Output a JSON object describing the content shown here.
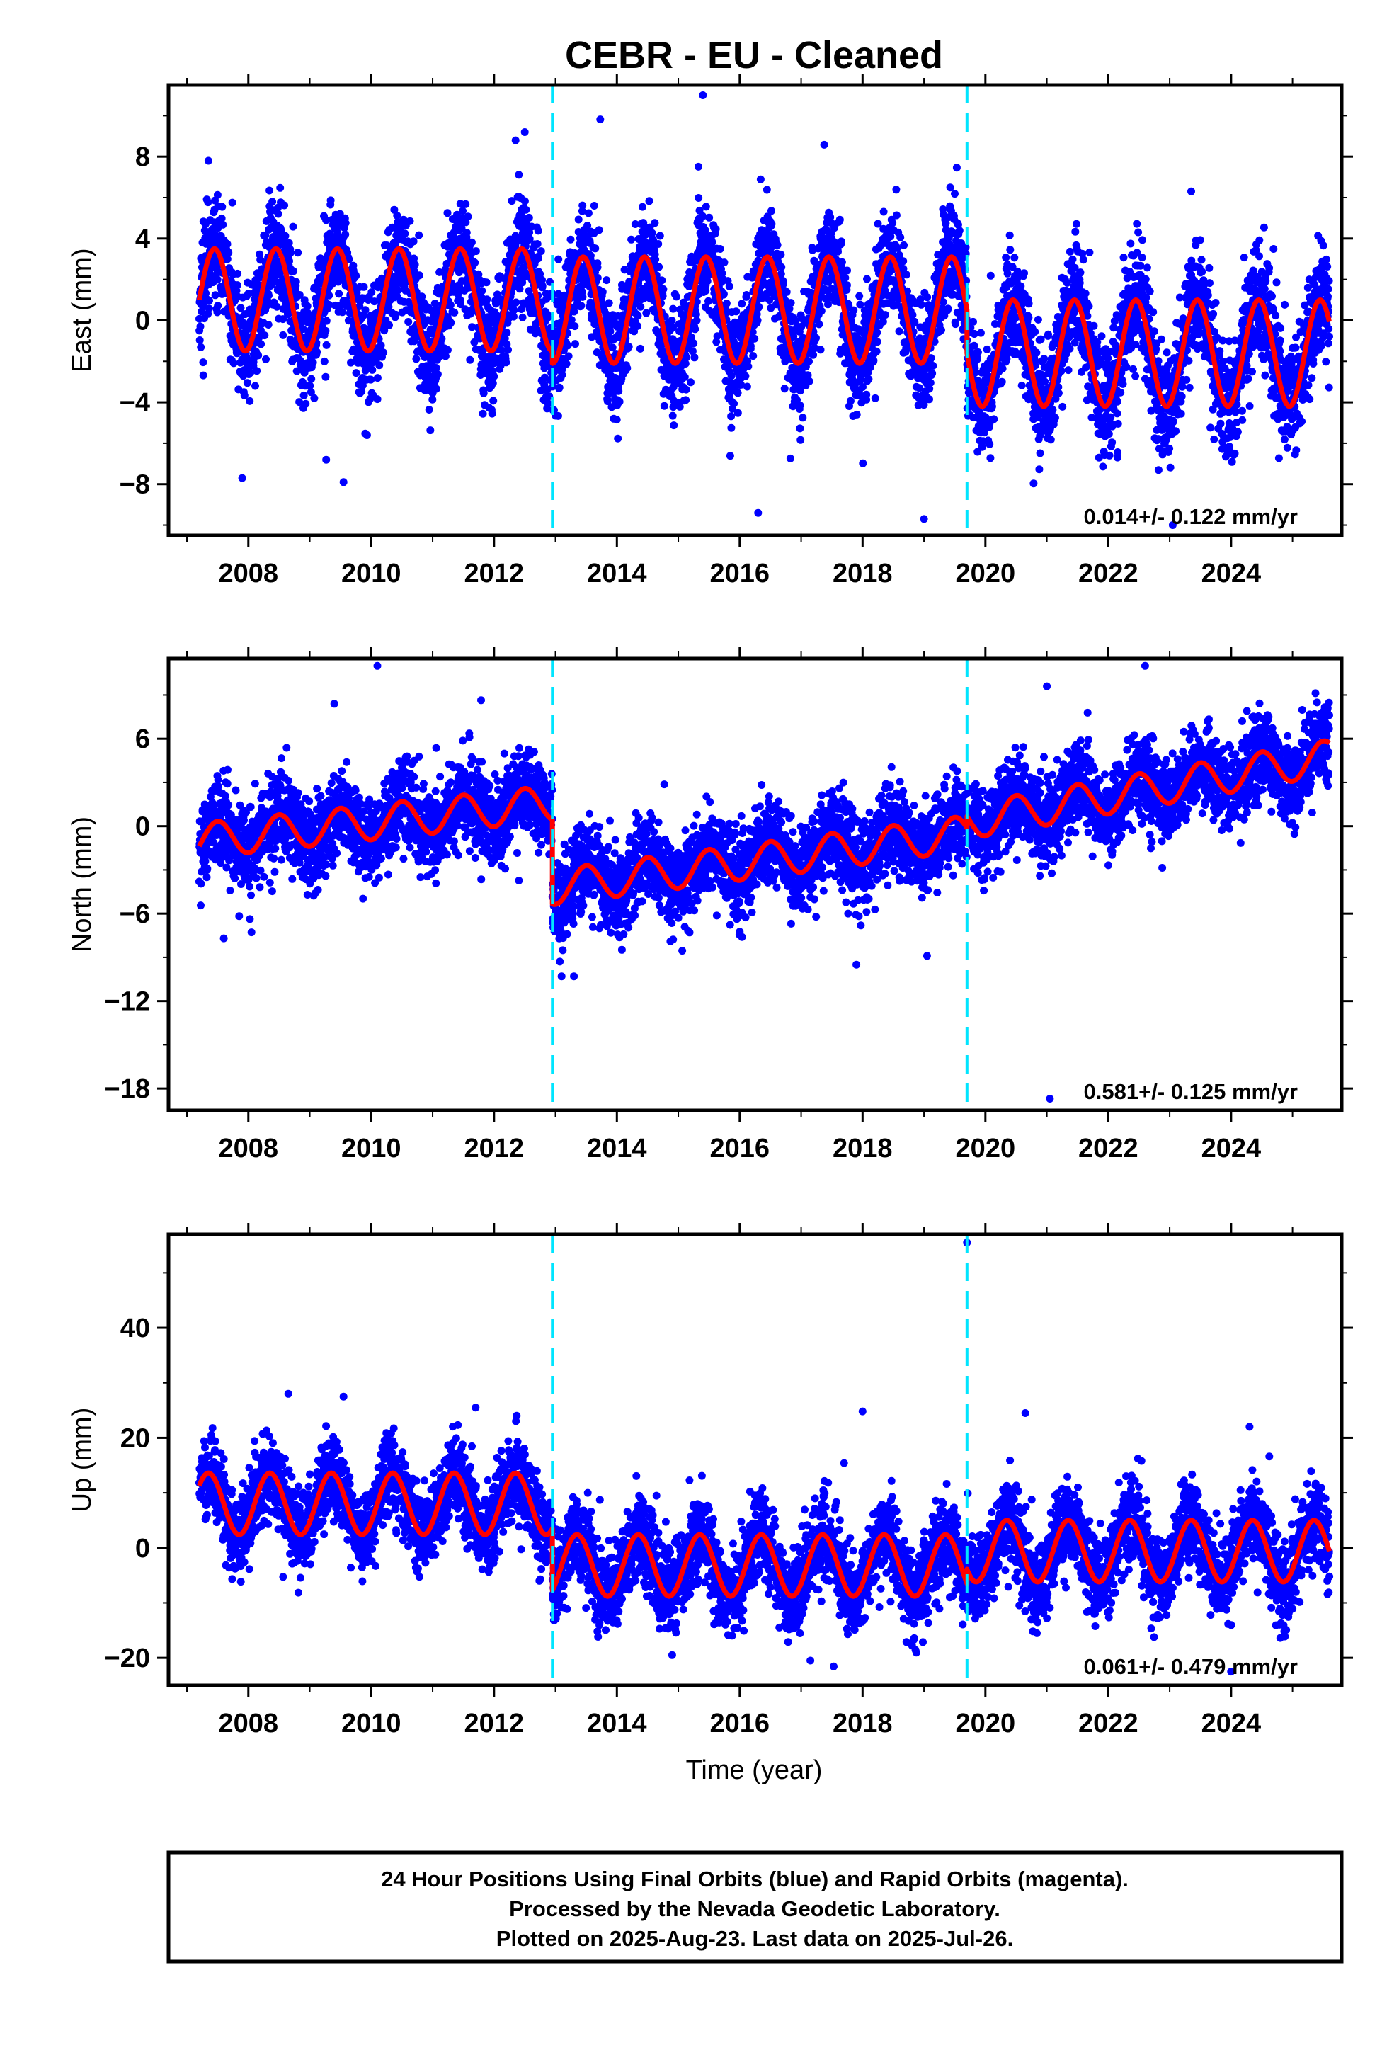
{
  "page": {
    "title": "CEBR  - EU - Cleaned",
    "xlabel": "Time (year)",
    "footer_lines": [
      "24 Hour Positions Using Final Orbits (blue) and Rapid Orbits (magenta).",
      "Processed by the Nevada Geodetic Laboratory.",
      "Plotted on 2025-Aug-23. Last data on 2025-Jul-26."
    ]
  },
  "colors": {
    "points": "#0000ff",
    "model": "#ff0000",
    "breaks": "#00e5ff",
    "frame": "#000000"
  },
  "chart_data": [
    {
      "type": "scatter",
      "ylabel": "East (mm)",
      "xlim": [
        2006.7,
        2025.8
      ],
      "ylim": [
        -10.5,
        11.5
      ],
      "yticks": [
        -8,
        -4,
        0,
        4,
        8
      ],
      "xticks": [
        2008,
        2010,
        2012,
        2014,
        2016,
        2018,
        2020,
        2022,
        2024
      ],
      "tick_labels": {
        "y": [
          "−8",
          "−4",
          "0",
          "4",
          "8"
        ],
        "x": [
          "2008",
          "2010",
          "2012",
          "2014",
          "2016",
          "2018",
          "2020",
          "2022",
          "2024"
        ]
      },
      "rate_text": "0.014+/- 0.122 mm/yr",
      "breaks": [
        2012.95,
        2019.7
      ],
      "series": [
        {
          "role": "model",
          "segments": [
            {
              "x0": 2007.2,
              "x1": 2012.95,
              "offset": 1.0,
              "amplitude": 2.5,
              "phase": 2007.45
            },
            {
              "x0": 2012.95,
              "x1": 2019.7,
              "offset": 0.5,
              "amplitude": 2.6,
              "phase": 2007.45
            },
            {
              "x0": 2019.7,
              "x1": 2025.6,
              "offset": -1.6,
              "amplitude": 2.6,
              "phase": 2007.45
            }
          ]
        }
      ],
      "scatter": {
        "count": 6500,
        "noise": 1.3,
        "seed": 11,
        "outliers": [
          [
            2015.4,
            11.0
          ],
          [
            2012.5,
            9.2
          ],
          [
            2012.35,
            8.8
          ],
          [
            2007.35,
            7.8
          ],
          [
            2007.9,
            -7.7
          ],
          [
            2009.55,
            -7.9
          ],
          [
            2019.0,
            -9.7
          ],
          [
            2023.05,
            -10.0
          ],
          [
            2016.3,
            -9.4
          ],
          [
            2023.35,
            6.3
          ]
        ]
      }
    },
    {
      "type": "scatter",
      "ylabel": "North (mm)",
      "xlim": [
        2006.7,
        2025.8
      ],
      "ylim": [
        -19.5,
        11.5
      ],
      "yticks": [
        -18,
        -12,
        -6,
        0,
        6
      ],
      "xticks": [
        2008,
        2010,
        2012,
        2014,
        2016,
        2018,
        2020,
        2022,
        2024
      ],
      "tick_labels": {
        "y": [
          "−18",
          "−12",
          "−6",
          "0",
          "6"
        ],
        "x": [
          "2008",
          "2010",
          "2012",
          "2014",
          "2016",
          "2018",
          "2020",
          "2022",
          "2024"
        ]
      },
      "rate_text": "0.581+/- 0.125 mm/yr",
      "breaks": [
        2012.95,
        2019.7
      ],
      "series": [
        {
          "role": "model",
          "segments": [
            {
              "x0": 2007.2,
              "x1": 2012.95,
              "offset": -1.0,
              "amplitude": 1.2,
              "phase": 2007.5,
              "trend": 0.45,
              "t0": 2007.2
            },
            {
              "x0": 2012.95,
              "x1": 2019.7,
              "offset": -4.2,
              "amplitude": 1.2,
              "phase": 2007.5,
              "trend": 0.55,
              "t0": 2012.95
            },
            {
              "x0": 2019.7,
              "x1": 2025.6,
              "offset": 0.3,
              "amplitude": 1.2,
              "phase": 2007.5,
              "trend": 0.75,
              "t0": 2019.7
            }
          ]
        }
      ],
      "scatter": {
        "count": 6500,
        "noise": 1.4,
        "seed": 23,
        "outliers": [
          [
            2010.1,
            11.0
          ],
          [
            2022.6,
            11.0
          ],
          [
            2009.4,
            8.4
          ],
          [
            2021.05,
            -18.7
          ],
          [
            2013.1,
            -10.3
          ],
          [
            2013.3,
            -10.3
          ],
          [
            2007.6,
            -7.7
          ],
          [
            2017.9,
            -9.5
          ],
          [
            2021.0,
            9.6
          ],
          [
            2019.05,
            -8.9
          ]
        ]
      }
    },
    {
      "type": "scatter",
      "ylabel": "Up (mm)",
      "xlim": [
        2006.7,
        2025.8
      ],
      "ylim": [
        -25,
        57
      ],
      "yticks": [
        -20,
        0,
        20,
        40
      ],
      "xticks": [
        2008,
        2010,
        2012,
        2014,
        2016,
        2018,
        2020,
        2022,
        2024
      ],
      "tick_labels": {
        "y": [
          "−20",
          "0",
          "20",
          "40"
        ],
        "x": [
          "2008",
          "2010",
          "2012",
          "2014",
          "2016",
          "2018",
          "2020",
          "2022",
          "2024"
        ]
      },
      "rate_text": "0.061+/- 0.479 mm/yr",
      "breaks": [
        2012.95,
        2019.7
      ],
      "series": [
        {
          "role": "model",
          "segments": [
            {
              "x0": 2007.2,
              "x1": 2012.95,
              "offset": 8.0,
              "amplitude": 5.6,
              "phase": 2007.35
            },
            {
              "x0": 2012.95,
              "x1": 2019.7,
              "offset": -3.2,
              "amplitude": 5.6,
              "phase": 2007.35
            },
            {
              "x0": 2019.7,
              "x1": 2025.6,
              "offset": -0.6,
              "amplitude": 5.6,
              "phase": 2007.35
            }
          ]
        }
      ],
      "scatter": {
        "count": 6500,
        "noise": 3.6,
        "seed": 37,
        "outliers": [
          [
            2019.7,
            55.5
          ],
          [
            2008.65,
            28.0
          ],
          [
            2009.55,
            27.5
          ],
          [
            2018.0,
            24.8
          ],
          [
            2020.65,
            24.5
          ],
          [
            2024.0,
            -22.5
          ],
          [
            2014.9,
            -19.5
          ],
          [
            2017.15,
            -20.5
          ],
          [
            2024.3,
            22.0
          ],
          [
            2011.7,
            25.5
          ]
        ]
      }
    }
  ]
}
